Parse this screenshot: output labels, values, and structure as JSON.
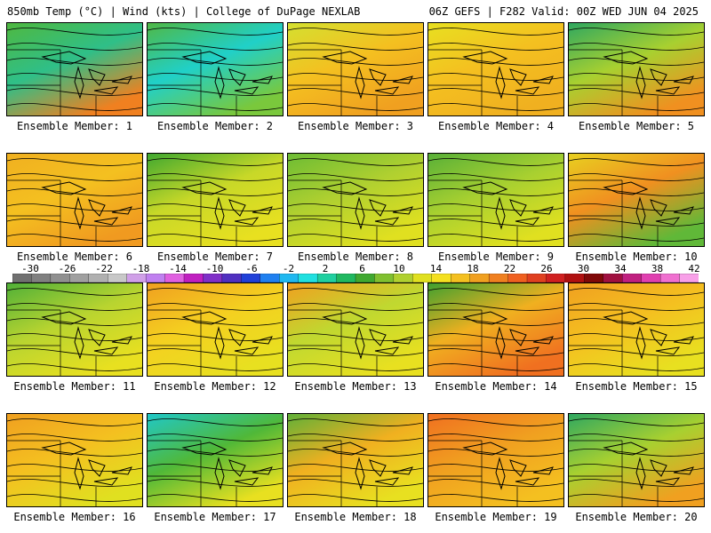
{
  "header": {
    "left": "850mb Temp (°C) | Wind (kts) | College of DuPage NEXLAB",
    "right": "06Z GEFS | F282 Valid: 00Z WED JUN 04 2025"
  },
  "members": [
    {
      "label": "Ensemble Member: 1",
      "colors": [
        "#4fb840",
        "#2fbf88",
        "#f08020"
      ]
    },
    {
      "label": "Ensemble Member: 2",
      "colors": [
        "#50b846",
        "#20d0c8",
        "#7ac83c"
      ]
    },
    {
      "label": "Ensemble Member: 3",
      "colors": [
        "#d4e030",
        "#f4c020",
        "#f0a020"
      ]
    },
    {
      "label": "Ensemble Member: 4",
      "colors": [
        "#e8e020",
        "#f4c020",
        "#f0b020"
      ]
    },
    {
      "label": "Ensemble Member: 5",
      "colors": [
        "#2fa860",
        "#a8d030",
        "#f09020"
      ]
    },
    {
      "label": "Ensemble Member: 6",
      "colors": [
        "#f0b020",
        "#f4c020",
        "#f09a20"
      ]
    },
    {
      "label": "Ensemble Member: 7",
      "colors": [
        "#40a830",
        "#c8d828",
        "#e8e020"
      ]
    },
    {
      "label": "Ensemble Member: 8",
      "colors": [
        "#6cbc34",
        "#b0d030",
        "#e0e020"
      ]
    },
    {
      "label": "Ensemble Member: 9",
      "colors": [
        "#58b038",
        "#a8d030",
        "#e0e020"
      ]
    },
    {
      "label": "Ensemble Member: 10",
      "colors": [
        "#e8d020",
        "#f09020",
        "#60b838"
      ]
    },
    {
      "label": "Ensemble Member: 11",
      "colors": [
        "#50b038",
        "#b8d430",
        "#e8e020"
      ]
    },
    {
      "label": "Ensemble Member: 12",
      "colors": [
        "#f0a020",
        "#f4d020",
        "#e8e020"
      ]
    },
    {
      "label": "Ensemble Member: 13",
      "colors": [
        "#f0a020",
        "#c0d830",
        "#e8e020"
      ]
    },
    {
      "label": "Ensemble Member: 14",
      "colors": [
        "#40a030",
        "#f0b020",
        "#f07020"
      ]
    },
    {
      "label": "Ensemble Member: 15",
      "colors": [
        "#f0a020",
        "#f4c020",
        "#e8e020"
      ]
    },
    {
      "label": "Ensemble Member: 16",
      "colors": [
        "#f0a020",
        "#f4c020",
        "#e0e020"
      ]
    },
    {
      "label": "Ensemble Member: 17",
      "colors": [
        "#20c8c8",
        "#50b838",
        "#e8e020"
      ]
    },
    {
      "label": "Ensemble Member: 18",
      "colors": [
        "#60b038",
        "#f0b020",
        "#e8e020"
      ]
    },
    {
      "label": "Ensemble Member: 19",
      "colors": [
        "#f07020",
        "#f0a020",
        "#f4c020"
      ]
    },
    {
      "label": "Ensemble Member: 20",
      "colors": [
        "#2fa860",
        "#a8d030",
        "#f0a020"
      ]
    }
  ],
  "colorbar": {
    "ticks": [
      "-30",
      "-26",
      "-22",
      "-18",
      "-14",
      "-10",
      "-6",
      "-2",
      "2",
      "6",
      "10",
      "14",
      "18",
      "22",
      "26",
      "30",
      "34",
      "38",
      "42"
    ],
    "colors": [
      "#707070",
      "#808080",
      "#909090",
      "#a0a0a0",
      "#b0b0b0",
      "#c8c8c8",
      "#d0a0e8",
      "#c080f0",
      "#e060e0",
      "#c020c0",
      "#8030c8",
      "#5030c0",
      "#2040d8",
      "#2080f0",
      "#20b8f0",
      "#20e0e0",
      "#20d0a0",
      "#20b860",
      "#40a830",
      "#80c030",
      "#b0d030",
      "#e0e020",
      "#f4e020",
      "#f4c020",
      "#f0a020",
      "#f08020",
      "#f06020",
      "#e04020",
      "#d02020",
      "#b01010",
      "#800808",
      "#a01040",
      "#c02080",
      "#e040b0",
      "#f070d0",
      "#f8a0e8"
    ]
  }
}
